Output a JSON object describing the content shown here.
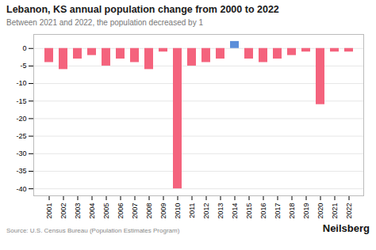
{
  "chart_data": {
    "type": "bar",
    "title": "Lebanon, KS annual population change from 2000 to 2022",
    "subtitle": "Between 2021 and 2022, the population decreased by 1",
    "source": "Source: U.S. Census Bureau (Population Estimates Program)",
    "branding": "Neilsberg",
    "categories": [
      "2001",
      "2002",
      "2003",
      "2004",
      "2005",
      "2006",
      "2007",
      "2008",
      "2009",
      "2010",
      "2011",
      "2012",
      "2013",
      "2014",
      "2015",
      "2016",
      "2017",
      "2018",
      "2019",
      "2020",
      "2021",
      "2022"
    ],
    "values": [
      -4,
      -6,
      -3,
      -2,
      -5,
      -3,
      -4,
      -6,
      -1,
      -40,
      -5,
      -4,
      -3,
      2,
      -3,
      -4,
      -3,
      -2,
      -1,
      -16,
      -1,
      -1
    ],
    "colors": [
      "#f4637d",
      "#f4637d",
      "#f4637d",
      "#f4637d",
      "#f4637d",
      "#f4637d",
      "#f4637d",
      "#f4637d",
      "#f4637d",
      "#f4637d",
      "#f4637d",
      "#f4637d",
      "#f4637d",
      "#5b8dd9",
      "#f4637d",
      "#f4637d",
      "#f4637d",
      "#f4637d",
      "#f4637d",
      "#f4637d",
      "#f4637d",
      "#f4637d"
    ],
    "ylim": [
      -42,
      4
    ],
    "yticks": [
      0,
      -5,
      -10,
      -15,
      -20,
      -25,
      -30,
      -35,
      -40
    ],
    "grid": true
  }
}
